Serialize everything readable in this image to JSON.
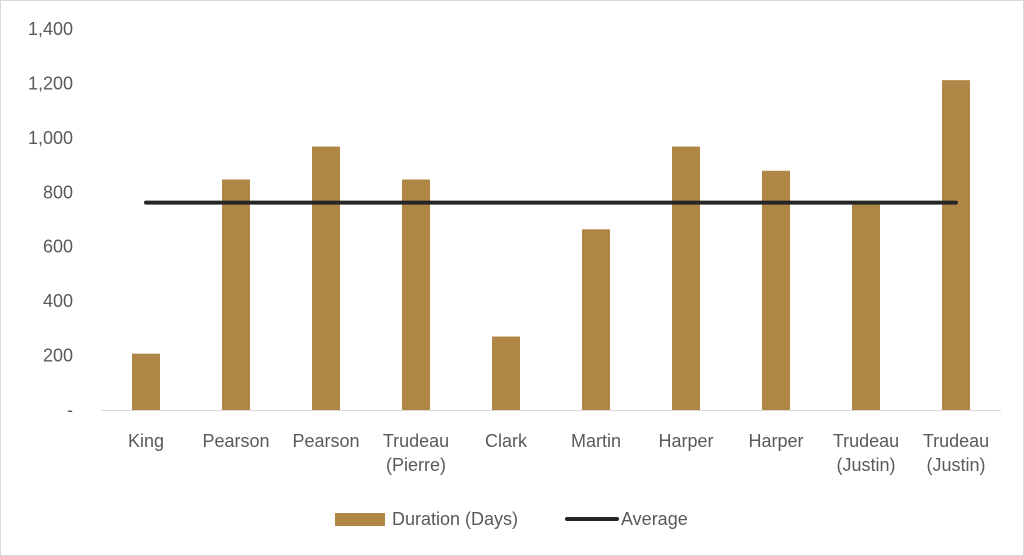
{
  "chart_data": {
    "type": "bar",
    "categories": [
      [
        "King"
      ],
      [
        "Pearson"
      ],
      [
        "Pearson"
      ],
      [
        "Trudeau",
        "(Pierre)"
      ],
      [
        "Clark"
      ],
      [
        "Martin"
      ],
      [
        "Harper"
      ],
      [
        "Harper"
      ],
      [
        "Trudeau",
        "(Justin)"
      ],
      [
        "Trudeau",
        "(Justin)"
      ]
    ],
    "series": [
      {
        "name": "Duration (Days)",
        "type": "bar",
        "color": "#b08646",
        "values": [
          207,
          847,
          968,
          847,
          270,
          664,
          968,
          879,
          760,
          1212
        ]
      },
      {
        "name": "Average",
        "type": "line",
        "color": "#262626",
        "values": [
          762,
          762,
          762,
          762,
          762,
          762,
          762,
          762,
          762,
          762
        ]
      }
    ],
    "y_ticks": [
      {
        "value": 0,
        "label": "-"
      },
      {
        "value": 200,
        "label": "200"
      },
      {
        "value": 400,
        "label": "400"
      },
      {
        "value": 600,
        "label": "600"
      },
      {
        "value": 800,
        "label": "800"
      },
      {
        "value": 1000,
        "label": "1,000"
      },
      {
        "value": 1200,
        "label": "1,200"
      },
      {
        "value": 1400,
        "label": "1,400"
      }
    ],
    "ylim": [
      0,
      1400
    ],
    "grid": false,
    "legend_position": "bottom",
    "title": "",
    "xlabel": "",
    "ylabel": ""
  }
}
